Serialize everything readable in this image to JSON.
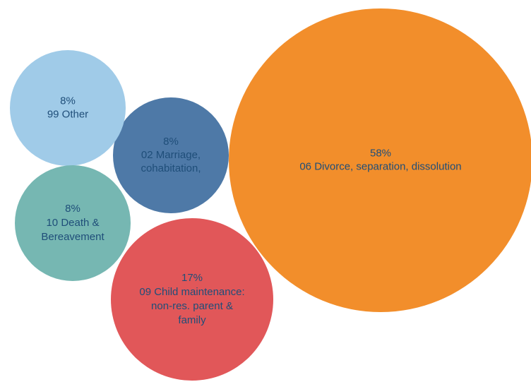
{
  "chart_data": {
    "type": "bubble",
    "bubbles": [
      {
        "percent": "58%",
        "label_lines": [
          "06 Divorce, separation, dissolution"
        ],
        "value": 58,
        "color": "#F28E2B",
        "text_color": "#1F4E79"
      },
      {
        "percent": "17%",
        "label_lines": [
          "09 Child maintenance:",
          "non-res. parent &",
          "family"
        ],
        "value": 17,
        "color": "#E15759",
        "text_color": "#1F4E79"
      },
      {
        "percent": "8%",
        "label_lines": [
          "02 Marriage,",
          "cohabitation,"
        ],
        "value": 8,
        "color": "#4E79A7",
        "text_color": "#1F4E79"
      },
      {
        "percent": "8%",
        "label_lines": [
          "99 Other"
        ],
        "value": 8,
        "color": "#A0CBE8",
        "text_color": "#1F4E79"
      },
      {
        "percent": "8%",
        "label_lines": [
          "10 Death &",
          "Bereavement"
        ],
        "value": 8,
        "color": "#76B7B2",
        "text_color": "#1F4E79"
      }
    ]
  }
}
